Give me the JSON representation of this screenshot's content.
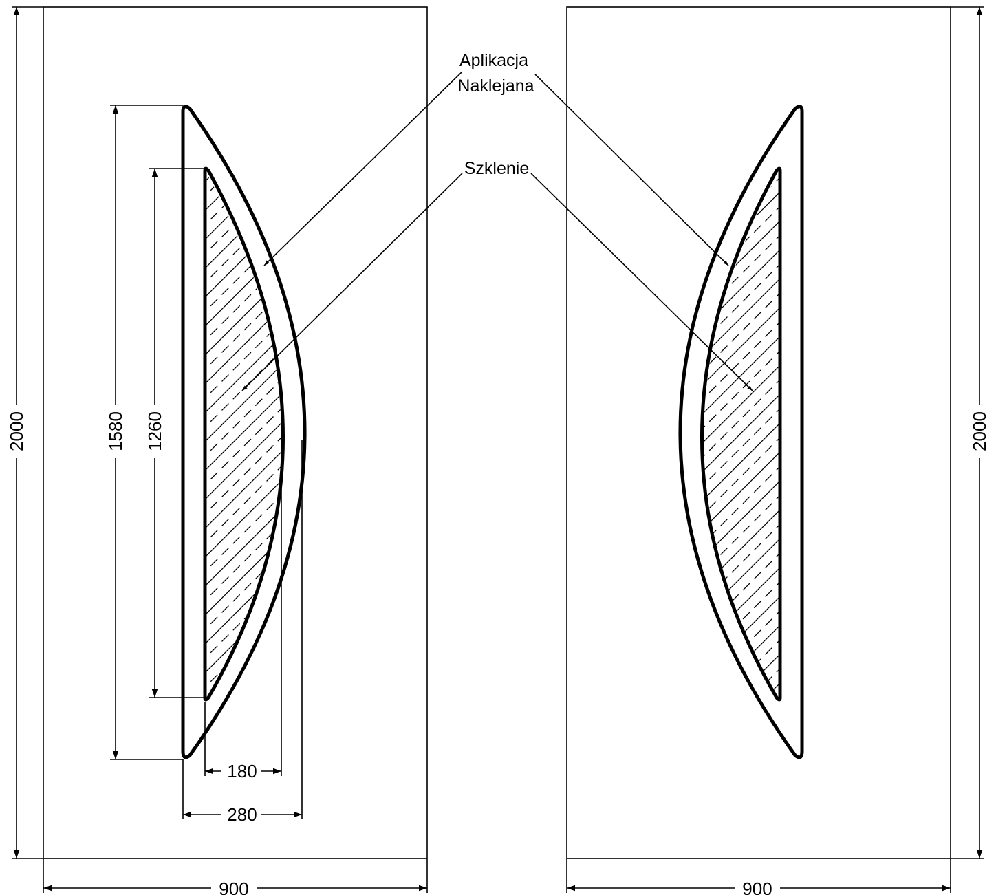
{
  "labels": {
    "applique_line1": "Aplikacja",
    "applique_line2": "Naklejana",
    "glazing": "Szklenie"
  },
  "dimensions": {
    "left_height": "2000",
    "right_height": "2000",
    "left_width": "900",
    "right_width": "900",
    "applique_height": "1580",
    "glazing_height": "1260",
    "glazing_width": "180",
    "applique_width": "280"
  }
}
